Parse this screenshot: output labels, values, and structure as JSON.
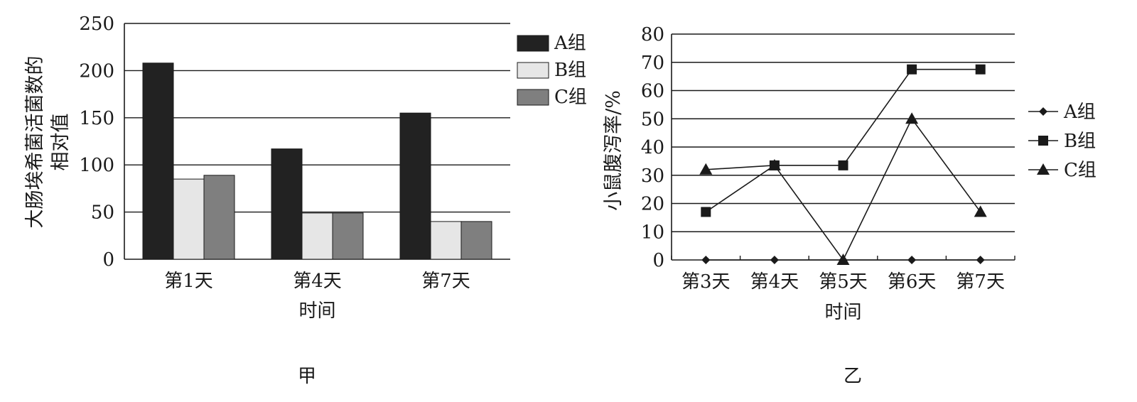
{
  "chart_data": [
    {
      "type": "bar",
      "caption": "甲",
      "ylabel": "大肠埃希菌活菌数的相对值",
      "ylabel_lines": [
        "大肠埃希菌活菌数的",
        "相对值"
      ],
      "xlabel": "时间",
      "categories": [
        "第1天",
        "第4天",
        "第7天"
      ],
      "ylim": [
        0,
        250
      ],
      "yticks": [
        0,
        50,
        100,
        150,
        200,
        250
      ],
      "grid": true,
      "legend": "right",
      "series": [
        {
          "name": "A组",
          "values": [
            208,
            117,
            155
          ],
          "color": "#222222"
        },
        {
          "name": "B组",
          "values": [
            85,
            49,
            40
          ],
          "color": "#e6e6e6"
        },
        {
          "name": "C组",
          "values": [
            89,
            49,
            40
          ],
          "color": "#7f7f7f"
        }
      ]
    },
    {
      "type": "line",
      "caption": "乙",
      "ylabel": "小鼠腹泻率/%",
      "xlabel": "时间",
      "categories": [
        "第3天",
        "第4天",
        "第5天",
        "第6天",
        "第7天"
      ],
      "ylim": [
        0,
        80
      ],
      "yticks": [
        0,
        10,
        20,
        30,
        40,
        50,
        60,
        70,
        80
      ],
      "grid": true,
      "legend": "right",
      "series": [
        {
          "name": "A组",
          "marker": "diamond",
          "values": [
            0,
            0,
            0,
            0,
            0
          ]
        },
        {
          "name": "B组",
          "marker": "square",
          "values": [
            17,
            33.5,
            33.5,
            67.5,
            67.5
          ]
        },
        {
          "name": "C组",
          "marker": "triangle",
          "values": [
            32,
            33.5,
            0,
            50,
            17
          ]
        }
      ]
    }
  ]
}
